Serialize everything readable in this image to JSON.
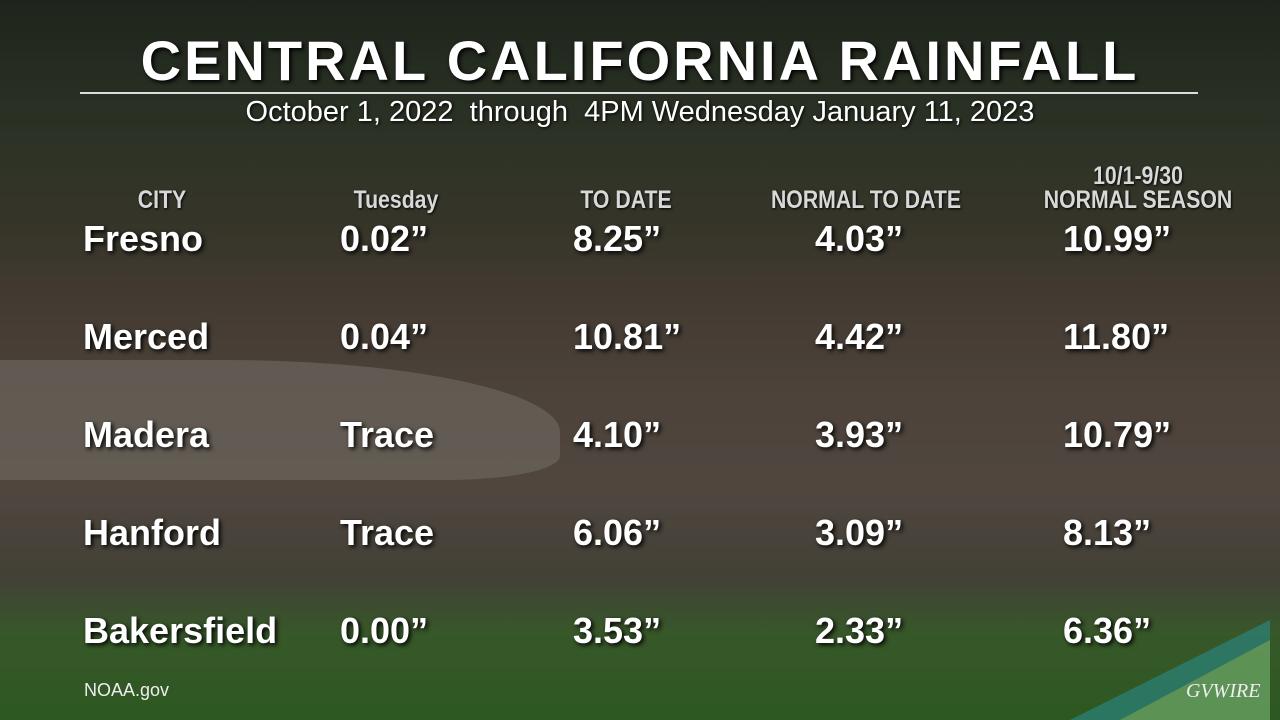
{
  "header": {
    "title": "CENTRAL CALIFORNIA RAINFALL",
    "subtitle": "October 1, 2022  through  4PM Wednesday January 11, 2023"
  },
  "table": {
    "header_note": "10/1-9/30",
    "columns": [
      "CITY",
      "Tuesday",
      "TO DATE",
      "NORMAL TO DATE",
      "NORMAL SEASON"
    ],
    "rows": [
      [
        "Fresno",
        "0.02”",
        "8.25”",
        "4.03”",
        "10.99”"
      ],
      [
        "Merced",
        "0.04”",
        "10.81”",
        "4.42”",
        "11.80”"
      ],
      [
        "Madera",
        "Trace",
        "4.10”",
        "3.93”",
        "10.79”"
      ],
      [
        "Hanford",
        "Trace",
        "6.06”",
        "3.09”",
        "8.13”"
      ],
      [
        "Bakersfield",
        "0.00”",
        "3.53”",
        "2.33”",
        "6.36”"
      ]
    ]
  },
  "footer": {
    "source": "NOAA.gov",
    "logo": "GVWIRE"
  }
}
